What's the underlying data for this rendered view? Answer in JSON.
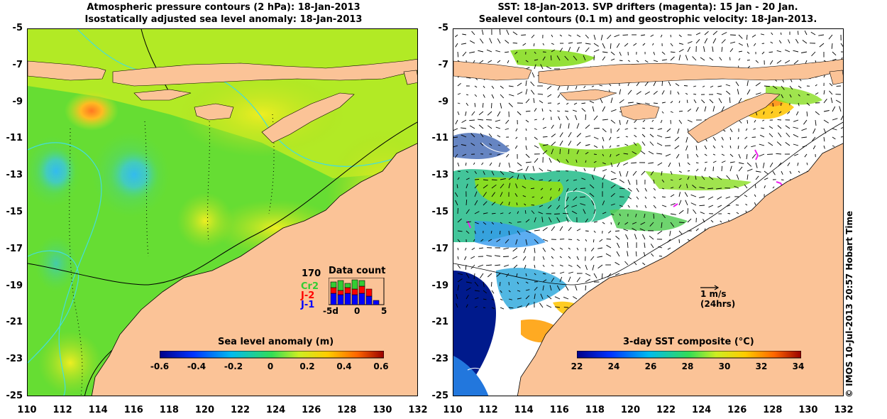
{
  "left_panel": {
    "title_line1": "Atmospheric pressure contours (2 hPa): 18-Jan-2013",
    "title_line2": "Isostatically adjusted sea level anomaly: 18-Jan-2013",
    "colorbar": {
      "title": "Sea level anomaly (m)",
      "ticks": [
        "-0.6",
        "-0.4",
        "-0.2",
        "0",
        "0.2",
        "0.4",
        "0.6"
      ]
    },
    "data_count": {
      "total": "170",
      "title": "Data count",
      "missions": [
        {
          "label": "Cr2",
          "color": "#33cc33"
        },
        {
          "label": "J-2",
          "color": "#ff0000"
        },
        {
          "label": "J-1",
          "color": "#0000ff"
        }
      ],
      "x_ticks": [
        "-5d",
        "0",
        "5"
      ]
    }
  },
  "right_panel": {
    "title_line1": "SST: 18-Jan-2013. SVP drifters (magenta): 15 Jan - 20 Jan.",
    "title_line2": "Sealevel contours (0.1 m) and geostrophic velocity: 18-Jan-2013.",
    "scale_arrow_label": "1 m/s",
    "scale_arrow_sublabel": "(24hrs)",
    "colorbar": {
      "title": "3-day SST composite (°C)",
      "ticks": [
        "22",
        "24",
        "26",
        "28",
        "30",
        "32",
        "34"
      ]
    }
  },
  "axes": {
    "y_ticks": [
      "-5",
      "-7",
      "-9",
      "-11",
      "-13",
      "-15",
      "-17",
      "-19",
      "-21",
      "-23",
      "-25"
    ],
    "x_ticks": [
      "110",
      "112",
      "114",
      "116",
      "118",
      "120",
      "122",
      "124",
      "126",
      "128",
      "130",
      "132"
    ]
  },
  "credit": "© IMOS 10-Jul-2013 20:57 Hobart Time",
  "colors": {
    "land": "#fbc397",
    "ocean_green": "#66dd33",
    "ocean_yellow": "#ccee22",
    "contour_cyan": "#44dddd",
    "sst_dark_blue": "#001a8c"
  }
}
